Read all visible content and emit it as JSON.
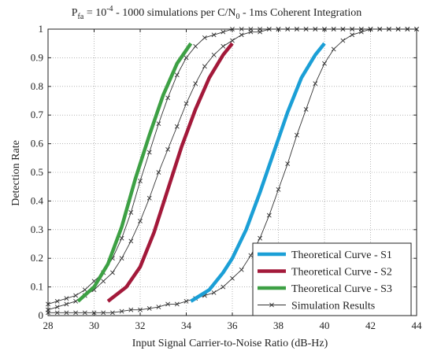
{
  "chart_data": {
    "type": "line",
    "title": {
      "p": "P",
      "p_sub": "fa",
      "eq": " = 10",
      "exp": "-4",
      "mid": " - 1000 simulations per C/N",
      "n_sub": "0",
      "tail": " - 1ms Coherent Integration"
    },
    "xlabel": "Input Signal Carrier-to-Noise Ratio (dB-Hz)",
    "ylabel": "Detection Rate",
    "xlim": [
      28,
      44
    ],
    "ylim": [
      0,
      1
    ],
    "xticks": [
      28,
      30,
      32,
      34,
      36,
      38,
      40,
      42,
      44
    ],
    "xtick_labels": [
      "28",
      "30",
      "32",
      "34",
      "36",
      "38",
      "40",
      "42",
      "44"
    ],
    "yticks": [
      0,
      0.1,
      0.2,
      0.3,
      0.4,
      0.5,
      0.6,
      0.7,
      0.8,
      0.9,
      1
    ],
    "ytick_labels": [
      "0",
      "0.1",
      "0.2",
      "0.3",
      "0.4",
      "0.5",
      "0.6",
      "0.7",
      "0.8",
      "0.9",
      "1"
    ],
    "grid": true,
    "legend_position": "bottom-right",
    "series": [
      {
        "name": "Theoretical Curve - S1",
        "color": "#1b9fd6",
        "style": "thick",
        "x": [
          34.2,
          35.0,
          35.6,
          36.0,
          36.6,
          37.2,
          37.8,
          38.4,
          39.0,
          39.6,
          40.0
        ],
        "y": [
          0.05,
          0.09,
          0.15,
          0.2,
          0.3,
          0.43,
          0.57,
          0.71,
          0.83,
          0.91,
          0.95
        ]
      },
      {
        "name": "Theoretical Curve - S2",
        "color": "#a3193a",
        "style": "thick",
        "x": [
          30.6,
          31.4,
          32.0,
          32.6,
          33.2,
          33.8,
          34.4,
          35.0,
          35.6,
          36.0
        ],
        "y": [
          0.05,
          0.1,
          0.17,
          0.29,
          0.44,
          0.59,
          0.72,
          0.83,
          0.91,
          0.95
        ]
      },
      {
        "name": "Theoretical Curve - S3",
        "color": "#3da044",
        "style": "thick",
        "x": [
          29.3,
          30.0,
          30.6,
          31.2,
          31.8,
          32.4,
          33.0,
          33.6,
          34.2
        ],
        "y": [
          0.05,
          0.1,
          0.18,
          0.31,
          0.48,
          0.63,
          0.77,
          0.88,
          0.95
        ]
      },
      {
        "name": "Simulation Results",
        "color": "#333333",
        "style": "thin-x",
        "x": [
          28,
          28.4,
          28.8,
          29.2,
          29.6,
          30.0,
          30.4,
          30.8,
          31.2,
          31.6,
          32.0,
          32.4,
          32.8,
          33.2,
          33.6,
          34.0,
          34.4,
          34.8,
          35.2,
          35.6,
          36.0,
          36.4,
          36.8,
          37.2,
          37.6,
          38.0,
          38.4,
          38.8,
          39.2,
          39.6,
          40.0,
          40.4,
          40.8,
          41.2,
          41.6,
          42.0,
          42.4,
          42.8,
          43.2,
          43.6,
          44.0
        ],
        "y": [
          0.01,
          0.01,
          0.01,
          0.01,
          0.01,
          0.01,
          0.01,
          0.01,
          0.015,
          0.02,
          0.02,
          0.025,
          0.03,
          0.04,
          0.04,
          0.05,
          0.06,
          0.07,
          0.08,
          0.1,
          0.13,
          0.16,
          0.21,
          0.27,
          0.35,
          0.44,
          0.53,
          0.63,
          0.72,
          0.81,
          0.88,
          0.93,
          0.96,
          0.98,
          0.99,
          1.0,
          1.0,
          1.0,
          1.0,
          1.0,
          1.0
        ]
      },
      {
        "name": "",
        "color": "#333333",
        "style": "thin-x",
        "x": [
          28,
          28.4,
          28.8,
          29.2,
          29.6,
          30.0,
          30.4,
          30.8,
          31.2,
          31.6,
          32.0,
          32.4,
          32.8,
          33.2,
          33.6,
          34.0,
          34.4,
          34.8,
          35.2,
          35.6,
          36.0,
          36.4,
          36.8,
          37.2,
          37.6,
          38.0,
          38.4,
          38.8,
          39.2,
          39.6,
          40.0,
          40.4,
          40.8,
          41.2,
          41.6,
          42.0,
          42.4,
          42.8,
          43.2,
          43.6,
          44.0
        ],
        "y": [
          0.02,
          0.03,
          0.04,
          0.05,
          0.07,
          0.09,
          0.12,
          0.15,
          0.2,
          0.26,
          0.33,
          0.41,
          0.5,
          0.58,
          0.66,
          0.74,
          0.81,
          0.87,
          0.91,
          0.94,
          0.96,
          0.98,
          0.99,
          0.99,
          1.0,
          1.0,
          1.0,
          1.0,
          1.0,
          1.0,
          1.0,
          1.0,
          1.0,
          1.0,
          1.0,
          1.0,
          1.0,
          1.0,
          1.0,
          1.0,
          1.0
        ]
      },
      {
        "name": "",
        "color": "#333333",
        "style": "thin-x",
        "x": [
          28,
          28.4,
          28.8,
          29.2,
          29.6,
          30.0,
          30.4,
          30.8,
          31.2,
          31.6,
          32.0,
          32.4,
          32.8,
          33.2,
          33.6,
          34.0,
          34.4,
          34.8,
          35.2,
          35.6,
          36.0,
          36.4,
          36.8,
          37.2,
          37.6,
          38.0,
          38.4,
          38.8,
          39.2,
          39.6,
          40.0,
          40.4,
          40.8,
          41.2,
          41.6,
          42.0,
          42.4,
          42.8,
          43.2,
          43.6,
          44.0
        ],
        "y": [
          0.04,
          0.05,
          0.06,
          0.07,
          0.09,
          0.12,
          0.15,
          0.2,
          0.27,
          0.36,
          0.47,
          0.57,
          0.67,
          0.76,
          0.84,
          0.9,
          0.94,
          0.97,
          0.98,
          0.99,
          1.0,
          1.0,
          1.0,
          1.0,
          1.0,
          1.0,
          1.0,
          1.0,
          1.0,
          1.0,
          1.0,
          1.0,
          1.0,
          1.0,
          1.0,
          1.0,
          1.0,
          1.0,
          1.0,
          1.0,
          1.0
        ]
      }
    ]
  }
}
